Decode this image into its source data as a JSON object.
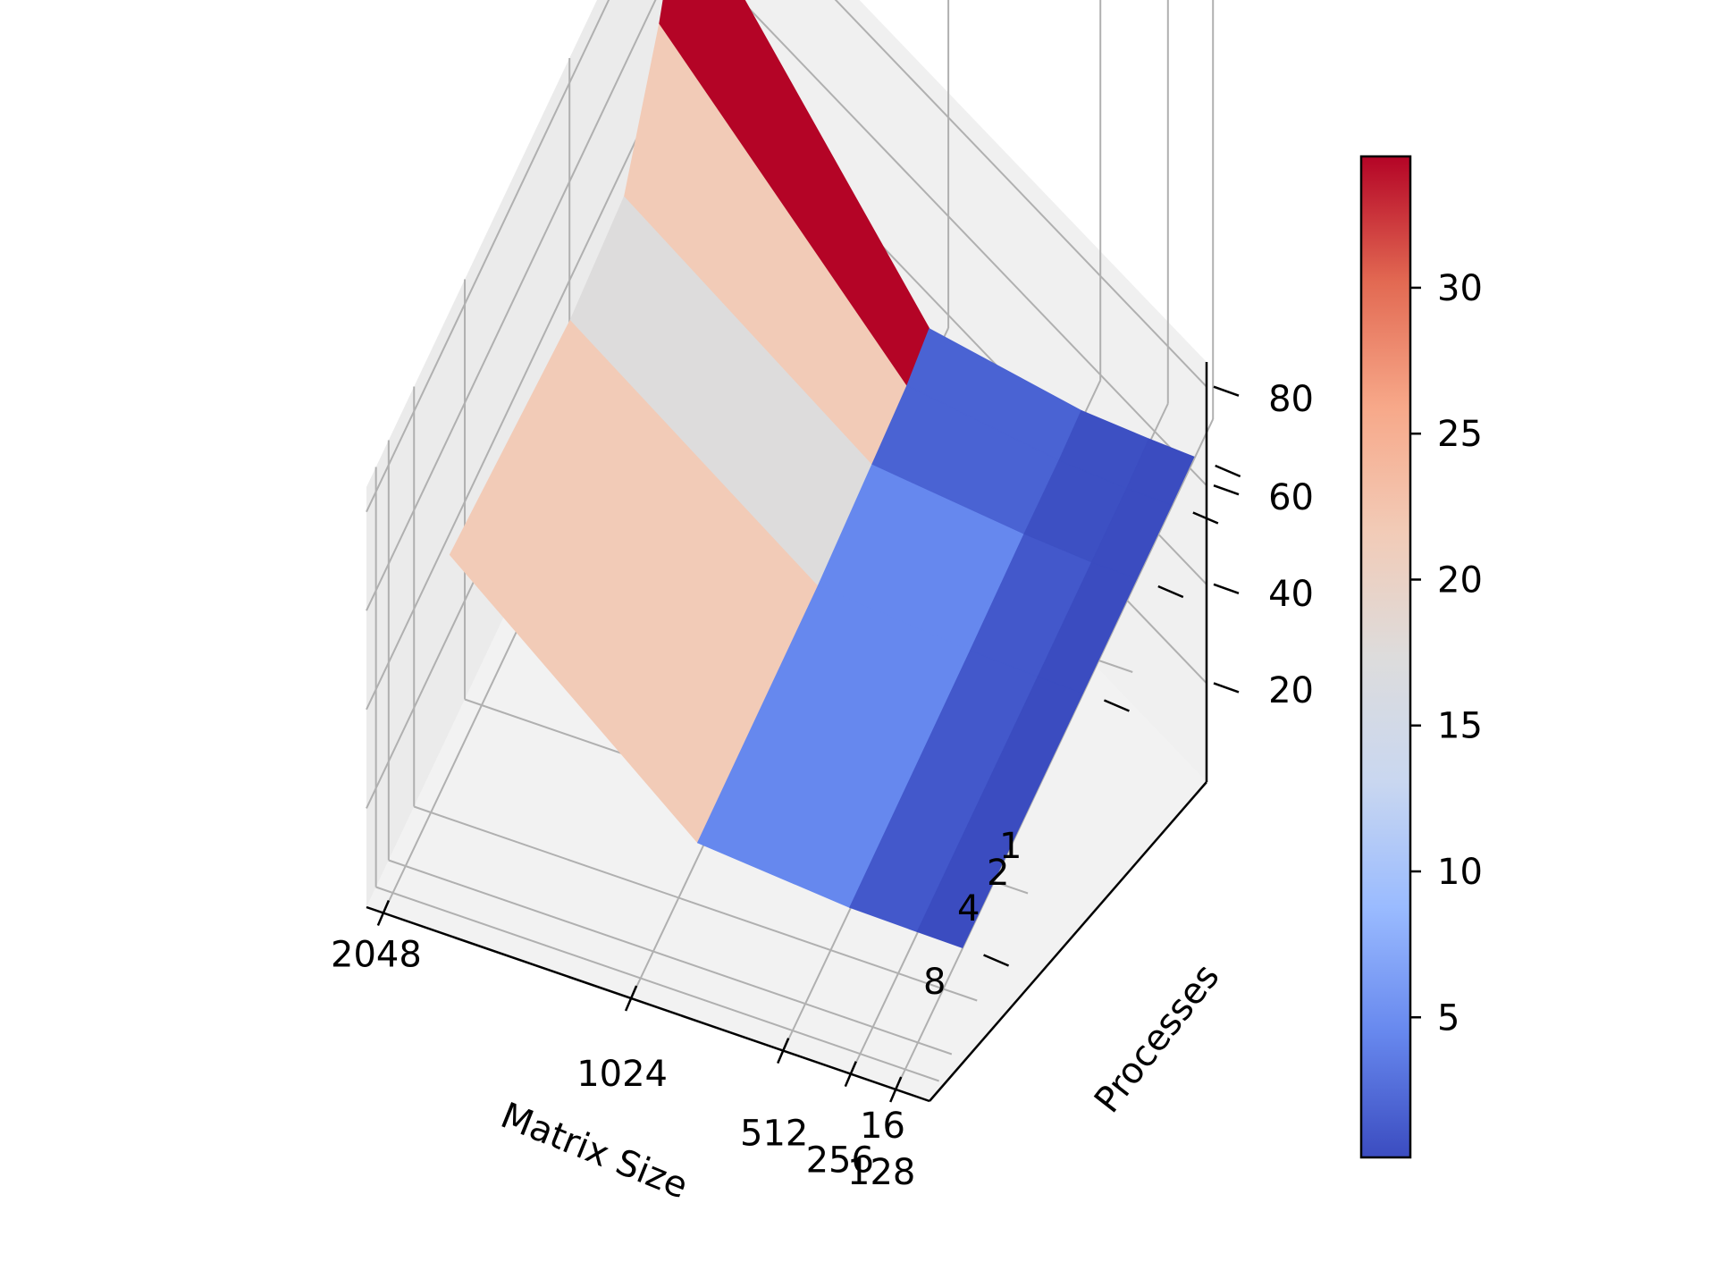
{
  "chart_data": {
    "type": "surface3d",
    "title": "",
    "xlabel": "Matrix Size",
    "ylabel": "Processes",
    "zlabel": "",
    "matrix_sizes": [
      "2048",
      "1024",
      "512",
      "256",
      "128"
    ],
    "processes": [
      "1",
      "2",
      "4",
      "8",
      "16"
    ],
    "z_ticks": [
      "20",
      "40",
      "60",
      "80"
    ],
    "zlim": [
      0,
      85
    ],
    "colormap": "coolwarm",
    "colorbar": {
      "range": [
        0.2,
        34.5
      ],
      "ticks": [
        "5",
        "10",
        "15",
        "20",
        "25",
        "30"
      ]
    },
    "grid": true,
    "series": [
      {
        "matrix_size": "2048",
        "values_by_processes": [
          80,
          62,
          42,
          40,
          44
        ]
      },
      {
        "matrix_size": "1024",
        "values_by_processes": [
          8,
          6,
          5,
          3.5,
          3
        ]
      },
      {
        "matrix_size": "512",
        "values_by_processes": [
          2,
          1.5,
          1.5,
          1,
          0.5
        ]
      },
      {
        "matrix_size": "256",
        "values_by_processes": [
          1,
          0.5,
          0.5,
          0.4,
          0.3
        ]
      },
      {
        "matrix_size": "128",
        "values_by_processes": [
          0.5,
          0.3,
          0.3,
          0.2,
          0.2
        ]
      }
    ],
    "face_colors": [
      [
        "#b40426",
        "#f2cbb7",
        "#dddcdc",
        "#f2cbb7"
      ],
      [
        "#4a63d3",
        "#4a63d3",
        "#6688ee",
        "#6688ee"
      ],
      [
        "#3d50c3",
        "#3d50c3",
        "#4358cb",
        "#4358cb"
      ],
      [
        "#3b4cc0",
        "#3b4cc0",
        "#3b4cc0",
        "#3b4cc0"
      ]
    ],
    "colorbar_stops": [
      "#3b4cc0",
      "#6788ee",
      "#9abbff",
      "#c9d7f0",
      "#dddcdc",
      "#f2cbb7",
      "#f7a889",
      "#e26952",
      "#b40426"
    ]
  }
}
